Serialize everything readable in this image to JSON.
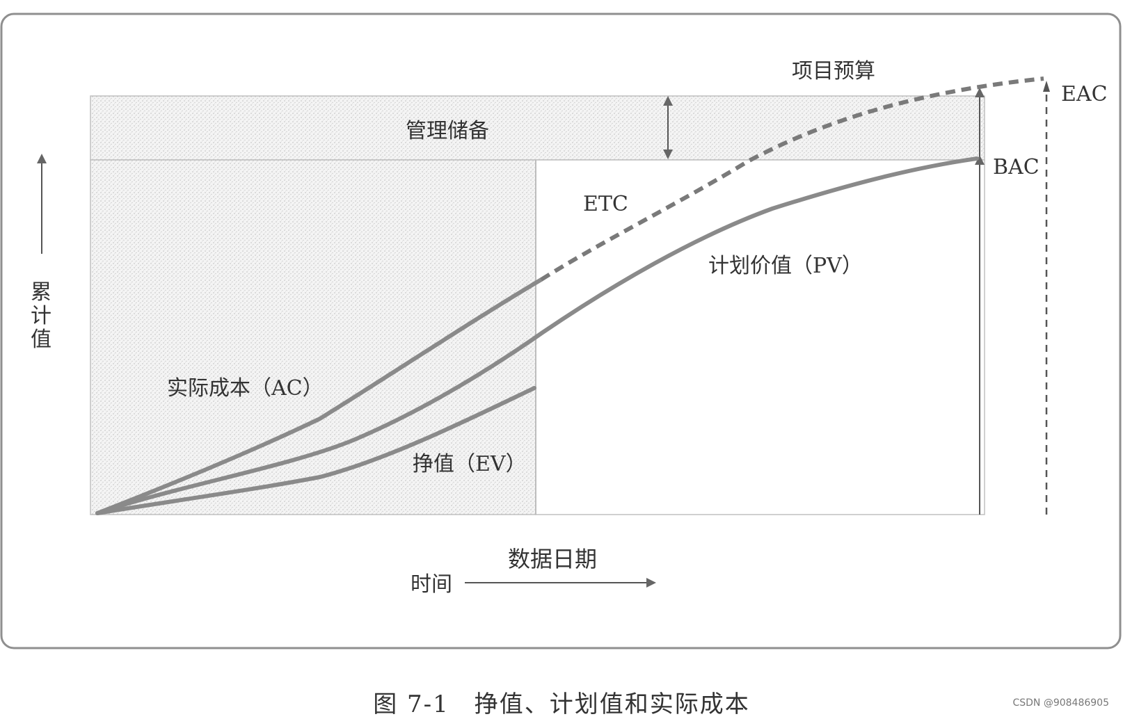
{
  "labels": {
    "project_budget": "项目预算",
    "management_reserve": "管理储备",
    "eac": "EAC",
    "bac": "BAC",
    "etc": "ETC",
    "pv": "计划价值（PV）",
    "ac": "实际成本（AC）",
    "ev": "挣值（EV）",
    "y_axis": [
      "累",
      "计",
      "值"
    ],
    "data_date": "数据日期",
    "time": "时间"
  },
  "caption": "图 7-1　挣值、计划值和实际成本",
  "watermark": "CSDN @908486905",
  "colors": {
    "curve": "#8a8a8a",
    "frame": "#9a9a9a",
    "stipple": "#d8d8d8",
    "text": "#333333"
  }
}
